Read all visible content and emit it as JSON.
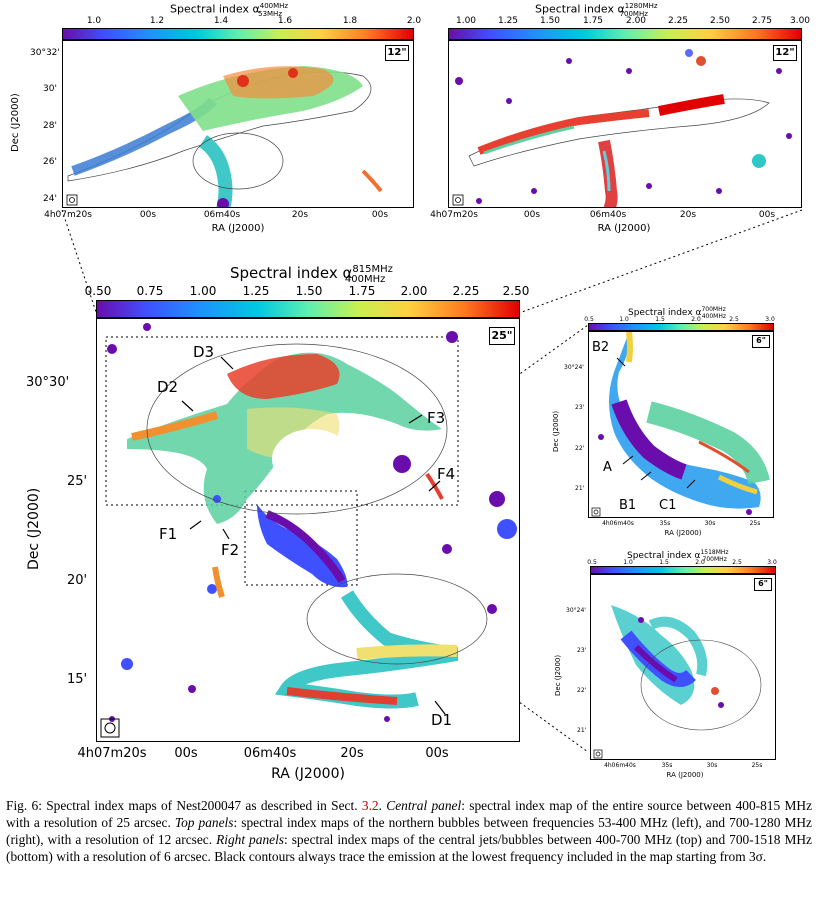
{
  "top_left": {
    "cbar_title": "Spectral index α",
    "cbar_sup": "400MHz",
    "cbar_sub": "53MHz",
    "cbar_ticks": [
      "1.0",
      "1.2",
      "1.4",
      "1.6",
      "1.8",
      "2.0"
    ],
    "res": "12\"",
    "yticks": [
      "30°32'",
      "30'",
      "28'",
      "26'",
      "24'"
    ],
    "xticks": [
      "4h07m20s",
      "00s",
      "06m40s",
      "20s",
      "00s"
    ],
    "xlabel": "RA (J2000)",
    "ylabel": "Dec (J2000)"
  },
  "top_right": {
    "cbar_title": "Spectral index α",
    "cbar_sup": "1280MHz",
    "cbar_sub": "700MHz",
    "cbar_ticks": [
      "1.00",
      "1.25",
      "1.50",
      "1.75",
      "2.00",
      "2.25",
      "2.50",
      "2.75",
      "3.00"
    ],
    "res": "12\"",
    "xticks": [
      "4h07m20s",
      "00s",
      "06m40s",
      "20s",
      "00s"
    ],
    "xlabel": "RA (J2000)"
  },
  "center": {
    "cbar_title": "Spectral index α",
    "cbar_sup": "815MHz",
    "cbar_sub": "400MHz",
    "cbar_ticks": [
      "0.50",
      "0.75",
      "1.00",
      "1.25",
      "1.50",
      "1.75",
      "2.00",
      "2.25",
      "2.50"
    ],
    "res": "25\"",
    "yticks": [
      "30°30'",
      "25'",
      "20'",
      "15'"
    ],
    "xticks": [
      "4h07m20s",
      "00s",
      "06m40s",
      "20s",
      "00s"
    ],
    "xlabel": "RA (J2000)",
    "ylabel": "Dec (J2000)",
    "labels": [
      "D3",
      "D2",
      "F3",
      "F4",
      "F1",
      "F2",
      "D1"
    ]
  },
  "right_top": {
    "cbar_title": "Spectral index α",
    "cbar_sup": "700MHz",
    "cbar_sub": "400MHz",
    "cbar_ticks": [
      "0.5",
      "1.0",
      "1.5",
      "2.0",
      "2.5",
      "3.0"
    ],
    "res": "6\"",
    "yticks": [
      "30°24'",
      "23'",
      "22'",
      "21'"
    ],
    "xticks": [
      "4h06m40s",
      "35s",
      "30s",
      "25s"
    ],
    "xlabel": "RA (J2000)",
    "ylabel": "Dec (J2000)",
    "labels": [
      "B2",
      "A",
      "B1",
      "C1"
    ]
  },
  "right_bottom": {
    "cbar_title": "Spectral index α",
    "cbar_sup": "1518MHz",
    "cbar_sub": "700MHz",
    "cbar_ticks": [
      "0.5",
      "1.0",
      "1.5",
      "2.0",
      "2.5",
      "3.0"
    ],
    "res": "6\"",
    "yticks": [
      "30°24'",
      "23'",
      "22'",
      "21'"
    ],
    "xticks": [
      "4h06m40s",
      "35s",
      "30s",
      "25s"
    ],
    "xlabel": "RA (J2000)",
    "ylabel": "Dec (J2000)"
  },
  "caption": {
    "prefix": "Fig. 6: Spectral index maps of Nest200047 as described in Sect. ",
    "ref": "3.2",
    "p1": ". ",
    "central_label": "Central panel",
    "p2": ": spectral index map of the entire source between 400-815 MHz with a resolution of 25 arcsec. ",
    "top_label": "Top panels",
    "p3": ": spectral index maps of the northern bubbles between frequencies 53-400 MHz (left), and 700-1280 MHz (right), with a resolution of 12 arcsec. ",
    "right_label": "Right panels",
    "p4": ": spectral index maps of the central jets/bubbles between 400-700 MHz (top) and 700-1518 MHz (bottom) with a resolution of 6 arcsec. Black contours always trace the emission at the lowest frequency included in the map starting from 3σ."
  }
}
